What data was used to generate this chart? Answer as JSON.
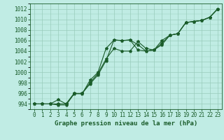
{
  "title": "Graphe pression niveau de la mer (hPa)",
  "ylim": [
    993.0,
    1013.0
  ],
  "xlim": [
    -0.5,
    23.5
  ],
  "yticks": [
    994,
    996,
    998,
    1000,
    1002,
    1004,
    1006,
    1008,
    1010,
    1012
  ],
  "xticks": [
    0,
    1,
    2,
    3,
    4,
    5,
    6,
    7,
    8,
    9,
    10,
    11,
    12,
    13,
    14,
    15,
    16,
    17,
    18,
    19,
    20,
    21,
    22,
    23
  ],
  "bg_color": "#c0ece4",
  "grid_color": "#99ccbb",
  "line_color": "#1a5c2a",
  "series1_y": [
    994.0,
    994.0,
    994.0,
    993.8,
    993.8,
    995.9,
    996.0,
    997.8,
    999.5,
    1002.2,
    1006.1,
    1006.0,
    1006.1,
    1004.2,
    1004.0,
    1004.2,
    1005.5,
    1007.0,
    1007.3,
    1009.4,
    1009.6,
    1009.8,
    1010.4,
    1012.0
  ],
  "series2_y": [
    994.0,
    994.0,
    994.0,
    994.0,
    994.0,
    996.0,
    995.9,
    998.5,
    1000.0,
    1004.5,
    1006.1,
    1006.0,
    1006.1,
    1005.2,
    1004.0,
    1004.2,
    1005.2,
    1007.0,
    1007.3,
    1009.4,
    1009.6,
    1009.8,
    1010.4,
    1012.0
  ],
  "series3_y": [
    994.0,
    994.0,
    994.0,
    994.8,
    994.0,
    996.0,
    996.0,
    998.0,
    999.8,
    1002.5,
    1004.5,
    1004.0,
    1004.0,
    1005.8,
    1004.5,
    1004.2,
    1006.0,
    1007.0,
    1007.3,
    1009.4,
    1009.6,
    1009.8,
    1010.4,
    1012.0
  ],
  "marker": "*",
  "marker_size": 3.0,
  "linewidth": 0.8,
  "tick_fontsize": 5.5,
  "label_fontsize": 6.5
}
